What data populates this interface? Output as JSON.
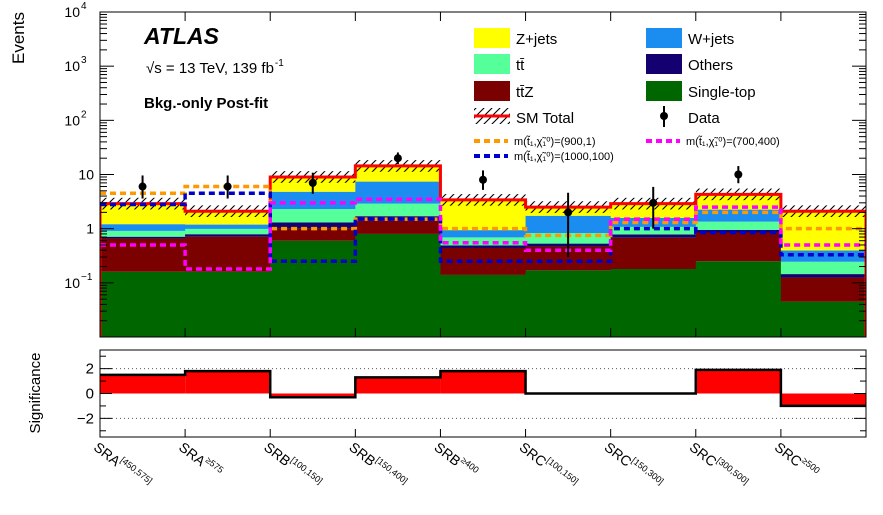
{
  "chart_data": {
    "type": "bar",
    "subtype": "stacked-histogram-log",
    "categories": [
      {
        "base": "SRA",
        "sup": "[450,575]"
      },
      {
        "base": "SRA",
        "sup": "≥575"
      },
      {
        "base": "SRB",
        "sup": "[100,150]"
      },
      {
        "base": "SRB",
        "sup": "[150,400]"
      },
      {
        "base": "SRB",
        "sup": "≥400"
      },
      {
        "base": "SRC",
        "sup": "[100,150]"
      },
      {
        "base": "SRC",
        "sup": "[150,300]"
      },
      {
        "base": "SRC",
        "sup": "[300,500]"
      },
      {
        "base": "SRC",
        "sup": "≥500"
      }
    ],
    "ylabel": "Events",
    "ylim": [
      0.01,
      10000
    ],
    "yscale": "log",
    "yticks": [
      {
        "v": 0.1,
        "label": "10",
        "sup": "−1"
      },
      {
        "v": 1,
        "label": "1",
        "sup": ""
      },
      {
        "v": 10,
        "label": "10",
        "sup": ""
      },
      {
        "v": 100,
        "label": "10",
        "sup": "2"
      },
      {
        "v": 1000,
        "label": "10",
        "sup": "3"
      },
      {
        "v": 10000,
        "label": "10",
        "sup": "4"
      }
    ],
    "annotations": {
      "atlas": "ATLAS",
      "energy_prefix": "√s = 13 TeV, 139 fb",
      "energy_sup": "-1",
      "fit": "Bkg.-only Post-fit"
    },
    "stack_order": [
      "Single-top",
      "tt̄Z",
      "Others",
      "tt̄",
      "W+jets",
      "Z+jets"
    ],
    "series": [
      {
        "name": "Single-top",
        "color": "#006600",
        "values": [
          0.16,
          0.16,
          0.6,
          0.8,
          0.14,
          0.17,
          0.18,
          0.25,
          0.045
        ]
      },
      {
        "name": "tt̄Z",
        "color": "#7b0000",
        "values": [
          0.5,
          0.55,
          0.4,
          0.6,
          0.3,
          0.3,
          0.5,
          0.6,
          0.08
        ]
      },
      {
        "name": "Others",
        "color": "#14006e",
        "values": [
          0.05,
          0.08,
          0.3,
          0.3,
          0.05,
          0.06,
          0.1,
          0.1,
          0.02
        ]
      },
      {
        "name": "tt̄",
        "color": "#55ff99",
        "values": [
          0.2,
          0.2,
          1.0,
          1.2,
          0.2,
          0.3,
          0.3,
          0.4,
          0.1
        ]
      },
      {
        "name": "W+jets",
        "color": "#1b8cf0",
        "values": [
          0.3,
          0.2,
          2.5,
          4.5,
          0.25,
          0.9,
          0.5,
          0.9,
          0.15
        ]
      },
      {
        "name": "Z+jets",
        "color": "#ffff00",
        "values": [
          1.7,
          0.9,
          4.2,
          7.0,
          2.5,
          0.8,
          1.3,
          2.1,
          1.7
        ]
      }
    ],
    "sm_total": [
      2.9,
      2.1,
      9.0,
      14.4,
      3.4,
      2.5,
      2.9,
      4.3,
      2.1
    ],
    "data": [
      {
        "y": 6,
        "err_lo": 2.4,
        "err_hi": 3.6
      },
      {
        "y": 6,
        "err_lo": 2.4,
        "err_hi": 3.6
      },
      {
        "y": 7,
        "err_lo": 2.6,
        "err_hi": 3.8
      },
      {
        "y": 20,
        "err_lo": 4.4,
        "err_hi": 5.5
      },
      {
        "y": 8,
        "err_lo": 2.8,
        "err_hi": 3.9
      },
      {
        "y": 2,
        "err_lo": 1.7,
        "err_hi": 2.6
      },
      {
        "y": 3,
        "err_lo": 2.0,
        "err_hi": 2.9
      },
      {
        "y": 10,
        "err_lo": 3.1,
        "err_hi": 4.3
      },
      {
        "y": 0,
        "err_lo": 0,
        "err_hi": 0
      }
    ],
    "signals": [
      {
        "label": "m(t̃₁,χ̃₁⁰)=(900,1)",
        "color": "#ff9900",
        "values": [
          4.5,
          6.0,
          1.0,
          1.5,
          1.0,
          0.75,
          1.3,
          2.0,
          1.0
        ]
      },
      {
        "label": "m(t̃₁,χ̃₁⁰)=(1000,100)",
        "color": "#0000cc",
        "values": [
          2.8,
          4.5,
          0.25,
          1.5,
          0.25,
          0.25,
          1.0,
          0.85,
          0.33
        ]
      },
      {
        "label": "m(t̃₁,χ̃₁⁰)=(700,400)",
        "color": "#ff00ff",
        "values": [
          0.5,
          0.18,
          3.0,
          3.5,
          0.55,
          0.4,
          1.5,
          2.5,
          0.5
        ]
      }
    ],
    "legend": {
      "placement": "top-right",
      "sm_total": "SM Total",
      "data": "Data"
    },
    "significance": {
      "ylabel": "Significance",
      "ylim": [
        -3.5,
        3.5
      ],
      "yticks": [
        -2,
        0,
        2
      ],
      "ytick_labels": [
        "−2",
        "0",
        "2"
      ],
      "values": [
        1.5,
        1.8,
        -0.3,
        1.3,
        1.8,
        0.0,
        0.0,
        1.9,
        -1.0
      ]
    }
  }
}
